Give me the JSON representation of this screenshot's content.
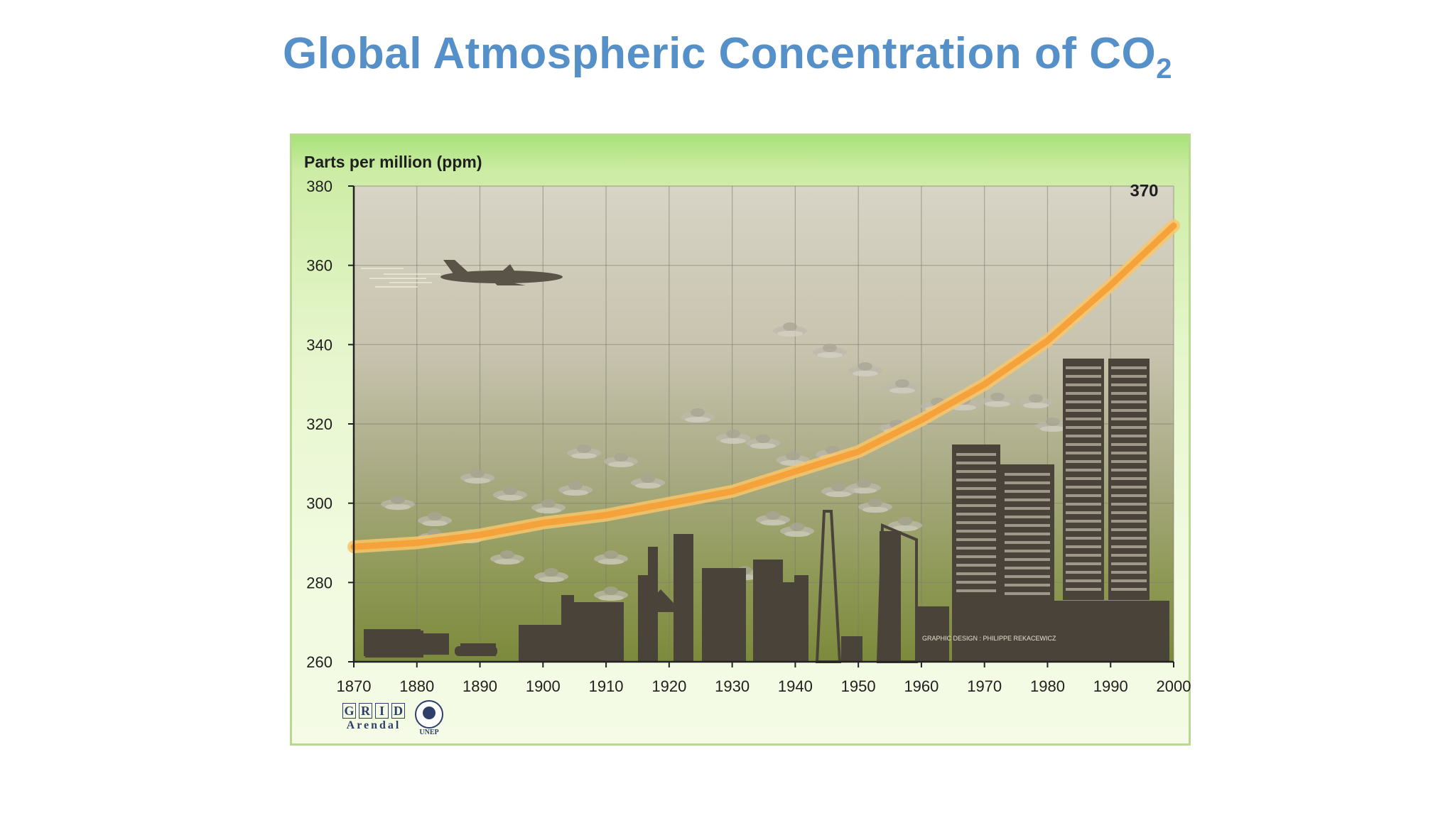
{
  "slide": {
    "title_main": "Global Atmospheric Concentration of CO",
    "title_sub": "2"
  },
  "chart_data": {
    "type": "line",
    "title": "Global Atmospheric Concentration of CO2",
    "ylabel": "Parts per million (ppm)",
    "xlabel": "",
    "x_ticks": [
      "1870",
      "1880",
      "1890",
      "1900",
      "1910",
      "1920",
      "1930",
      "1940",
      "1950",
      "1960",
      "1970",
      "1980",
      "1990",
      "2000"
    ],
    "y_ticks": [
      "260",
      "280",
      "300",
      "320",
      "340",
      "360",
      "380"
    ],
    "y_tick_values": [
      260,
      280,
      300,
      320,
      340,
      360,
      380
    ],
    "xlim": [
      1870,
      2000
    ],
    "ylim": [
      260,
      380
    ],
    "grid": true,
    "series": [
      {
        "x": [
          1870,
          1880,
          1890,
          1900,
          1910,
          1920,
          1930,
          1940,
          1950,
          1960,
          1970,
          1980,
          1990,
          2000
        ],
        "values": [
          289,
          290,
          292,
          295,
          297,
          300,
          303,
          308,
          313,
          321,
          330,
          341,
          355,
          370
        ],
        "color": "#f5a23a"
      }
    ],
    "annotations": [
      {
        "text": "370",
        "x": 1996,
        "y": 372
      }
    ]
  },
  "credit": "GRAPHIC DESIGN : PHILIPPE REKACEWICZ",
  "logos": {
    "grid_letters": [
      "G",
      "R",
      "I",
      "D"
    ],
    "grid_sub": "Arendal",
    "unep": "UNEP"
  },
  "colors": {
    "title": "#5591c8",
    "line": "#f5a23a",
    "frame": "#b9d891",
    "buildings": "#4a433a"
  }
}
